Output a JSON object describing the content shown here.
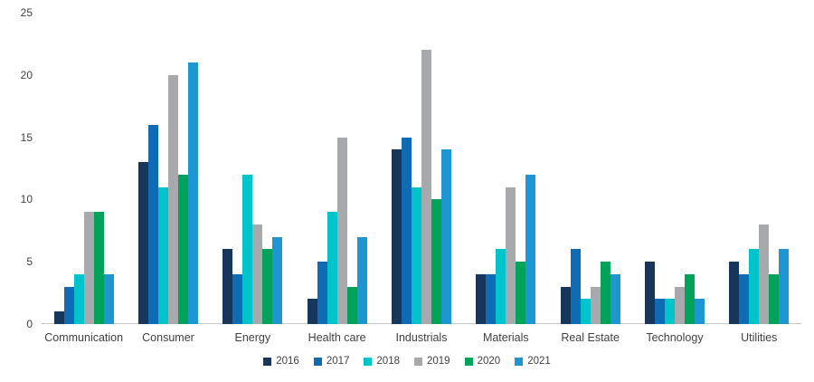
{
  "chart_data": {
    "type": "bar",
    "title": "",
    "xlabel": "",
    "ylabel": "",
    "categories": [
      "Communication",
      "Consumer",
      "Energy",
      "Health care",
      "Industrials",
      "Materials",
      "Real Estate",
      "Technology",
      "Utilities"
    ],
    "series": [
      {
        "name": "2016",
        "color": "#16365C",
        "values": [
          1,
          13,
          6,
          2,
          14,
          4,
          3,
          5,
          5
        ]
      },
      {
        "name": "2017",
        "color": "#0F6CB4",
        "values": [
          3,
          16,
          4,
          5,
          15,
          4,
          6,
          2,
          4
        ]
      },
      {
        "name": "2018",
        "color": "#00C4CC",
        "values": [
          4,
          11,
          12,
          9,
          11,
          6,
          2,
          2,
          6
        ]
      },
      {
        "name": "2019",
        "color": "#A8A9AD",
        "values": [
          9,
          20,
          8,
          15,
          22,
          11,
          3,
          3,
          8
        ]
      },
      {
        "name": "2020",
        "color": "#00A359",
        "values": [
          9,
          12,
          6,
          3,
          10,
          5,
          5,
          4,
          4
        ]
      },
      {
        "name": "2021",
        "color": "#1E96D2",
        "values": [
          4,
          21,
          7,
          7,
          14,
          12,
          4,
          2,
          6
        ]
      }
    ],
    "ylim": [
      0,
      25
    ],
    "yticks": [
      0,
      5,
      10,
      15,
      20,
      25
    ],
    "grid": false,
    "legend_position": "bottom",
    "axis_color": "#c8c8c8",
    "text_color": "#404040"
  }
}
